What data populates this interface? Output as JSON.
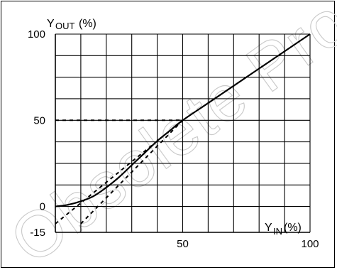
{
  "chart_data": {
    "type": "line",
    "y_label_main": "Y",
    "y_label_sub": "OUT",
    "y_label_unit": "(%)",
    "x_label_main": "Y",
    "x_label_sub": "IN",
    "x_label_unit": "(%)",
    "xlim": [
      0,
      100
    ],
    "ylim": [
      -15,
      100
    ],
    "x_ticks": [
      "50",
      "100"
    ],
    "x_tick_values": [
      50,
      100
    ],
    "y_ticks": [
      "100",
      "50",
      "0",
      "-15"
    ],
    "y_tick_values": [
      100,
      50,
      0,
      -15
    ],
    "grid": true,
    "series": [
      {
        "style": "solid",
        "x": [
          0,
          5,
          10,
          15,
          20,
          25,
          30,
          35,
          40,
          45,
          50,
          60,
          70,
          80,
          90,
          100
        ],
        "y": [
          0,
          1,
          3,
          6,
          11,
          17,
          24,
          31,
          38,
          44,
          50,
          60,
          70,
          80,
          90,
          100
        ]
      },
      {
        "style": "dotted",
        "x": [
          0,
          50
        ],
        "y": [
          -10,
          50
        ]
      },
      {
        "style": "dotted",
        "x": [
          10,
          50
        ],
        "y": [
          -10,
          50
        ]
      },
      {
        "style": "dotted",
        "x": [
          0,
          50
        ],
        "y": [
          50,
          50
        ]
      }
    ],
    "watermark": "Obsolete Product(s) -"
  }
}
